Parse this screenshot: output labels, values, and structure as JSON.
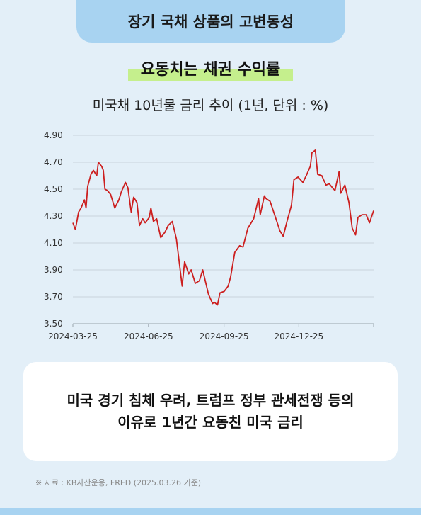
{
  "header": {
    "title": "장기 국채 상품의 고변동성"
  },
  "subtitle": "요동치는 채권 수익률",
  "chart_data": {
    "type": "line",
    "title": "미국채 10년물 금리 추이 (1년, 단위 : %)",
    "x_tick_labels": [
      "2024-03-25",
      "2024-06-25",
      "2024-09-25",
      "2024-12-25"
    ],
    "x_tick_dates": [
      "2024-03-25",
      "2024-06-25",
      "2024-09-25",
      "2024-12-25"
    ],
    "x_range": [
      "2024-03-25",
      "2025-03-26"
    ],
    "y_tick_labels": [
      "4.90",
      "4.70",
      "4.50",
      "4.30",
      "4.10",
      "3.90",
      "3.70",
      "3.50"
    ],
    "ylim": [
      3.5,
      4.9
    ],
    "grid": "horizontal",
    "line_color": "#cc1f1f",
    "series": [
      {
        "x": [
          "2024-03-25",
          "2024-03-28",
          "2024-04-01",
          "2024-04-04",
          "2024-04-08",
          "2024-04-10",
          "2024-04-12",
          "2024-04-16",
          "2024-04-19",
          "2024-04-23",
          "2024-04-25",
          "2024-04-29",
          "2024-05-01",
          "2024-05-03",
          "2024-05-06",
          "2024-05-10",
          "2024-05-15",
          "2024-05-20",
          "2024-05-23",
          "2024-05-28",
          "2024-05-31",
          "2024-06-04",
          "2024-06-07",
          "2024-06-11",
          "2024-06-14",
          "2024-06-18",
          "2024-06-21",
          "2024-06-26",
          "2024-06-28",
          "2024-07-01",
          "2024-07-05",
          "2024-07-10",
          "2024-07-15",
          "2024-07-19",
          "2024-07-24",
          "2024-07-29",
          "2024-08-01",
          "2024-08-05",
          "2024-08-08",
          "2024-08-13",
          "2024-08-16",
          "2024-08-21",
          "2024-08-26",
          "2024-08-30",
          "2024-09-04",
          "2024-09-06",
          "2024-09-11",
          "2024-09-13",
          "2024-09-17",
          "2024-09-20",
          "2024-09-25",
          "2024-09-30",
          "2024-10-03",
          "2024-10-08",
          "2024-10-14",
          "2024-10-18",
          "2024-10-24",
          "2024-10-31",
          "2024-11-06",
          "2024-11-08",
          "2024-11-13",
          "2024-11-15",
          "2024-11-20",
          "2024-11-26",
          "2024-12-02",
          "2024-12-06",
          "2024-12-11",
          "2024-12-16",
          "2024-12-19",
          "2024-12-24",
          "2024-12-30",
          "2025-01-03",
          "2025-01-08",
          "2025-01-10",
          "2025-01-14",
          "2025-01-17",
          "2025-01-22",
          "2025-01-27",
          "2025-01-31",
          "2025-02-04",
          "2025-02-07",
          "2025-02-12",
          "2025-02-14",
          "2025-02-19",
          "2025-02-24",
          "2025-02-28",
          "2025-03-04",
          "2025-03-07",
          "2025-03-12",
          "2025-03-17",
          "2025-03-21",
          "2025-03-26"
        ],
        "values": [
          4.25,
          4.2,
          4.33,
          4.36,
          4.42,
          4.36,
          4.52,
          4.61,
          4.64,
          4.6,
          4.7,
          4.67,
          4.64,
          4.5,
          4.49,
          4.46,
          4.36,
          4.42,
          4.48,
          4.55,
          4.51,
          4.33,
          4.44,
          4.4,
          4.23,
          4.28,
          4.25,
          4.29,
          4.36,
          4.26,
          4.28,
          4.14,
          4.18,
          4.23,
          4.26,
          4.13,
          3.98,
          3.78,
          3.96,
          3.87,
          3.9,
          3.8,
          3.82,
          3.9,
          3.77,
          3.72,
          3.65,
          3.66,
          3.64,
          3.73,
          3.74,
          3.78,
          3.85,
          4.03,
          4.08,
          4.07,
          4.21,
          4.28,
          4.43,
          4.31,
          4.45,
          4.43,
          4.41,
          4.3,
          4.19,
          4.15,
          4.27,
          4.38,
          4.57,
          4.59,
          4.55,
          4.6,
          4.67,
          4.77,
          4.79,
          4.61,
          4.6,
          4.53,
          4.54,
          4.51,
          4.49,
          4.63,
          4.47,
          4.53,
          4.4,
          4.21,
          4.16,
          4.29,
          4.31,
          4.31,
          4.25,
          4.34
        ]
      }
    ]
  },
  "card": {
    "line1": "미국 경기 침체 우려, 트럼프 정부 관세전쟁 등의",
    "line2": "이유로 1년간 요동친 미국 금리"
  },
  "source": "※ 자료 : KB자산운용, FRED (2025.03.26 기준)"
}
